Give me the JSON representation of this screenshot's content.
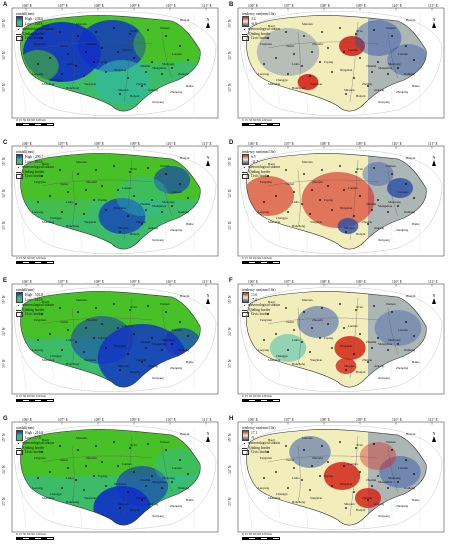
{
  "x_ticks": [
    "106° E",
    "107° E",
    "108° E",
    "109° E",
    "110° E",
    "111° E"
  ],
  "y_ticks": [
    "35° N",
    "34° N",
    "33° N"
  ],
  "legend_labels": {
    "rainfall": "rainfall(mm)",
    "tendency": "tendency rate(mm/10a)",
    "high": "High",
    "low": "Low",
    "station": "meteorological station",
    "border": "Qinling border",
    "civic": "Civic border"
  },
  "scale_label": "0 15 30     60     90    120",
  "scale_unit": "km",
  "north_label": "N",
  "places": [
    "Baoji",
    "Meixian",
    "Xi'an",
    "Weinan",
    "Huayin",
    "Luonan",
    "Shangzhou",
    "Zhen'an",
    "Hanzhong",
    "Foping",
    "Ningshan",
    "Ankang",
    "Lueyang",
    "Fengxian",
    "Zhashui",
    "Shanyang",
    "Chenggu",
    "Danfeng",
    "Lantian",
    "Zhouzhi",
    "Taibai",
    "Liuba",
    "Mianxian",
    "Yangxian",
    "Shiquan",
    "Hanyin",
    "Zhenping",
    "Xunyang",
    "Baihe"
  ],
  "panels": [
    {
      "id": "A",
      "type": "rainfall",
      "v1": "High : 238.6",
      "v2": "Low : 130.8"
    },
    {
      "id": "B",
      "type": "tendency",
      "v1": "3.4",
      "v2": "-6.9"
    },
    {
      "id": "C",
      "type": "rainfall",
      "v1": "High : 299.7",
      "v2": "Low : 195.6"
    },
    {
      "id": "D",
      "type": "tendency",
      "v1": "6.5",
      "v2": "-11.7"
    },
    {
      "id": "E",
      "type": "rainfall",
      "v1": "High : 501.8",
      "v2": "Low : 143.9"
    },
    {
      "id": "F",
      "type": "tendency",
      "v1": "13.6",
      "v2": "-7.4"
    },
    {
      "id": "G",
      "type": "rainfall",
      "v1": "High : 216.8",
      "v2": "Low : 77.5"
    },
    {
      "id": "H",
      "type": "tendency",
      "v1": "17.1",
      "v2": "-9"
    }
  ],
  "colors": {
    "rain_high": "#1030c8",
    "rain_mid": "#30b8a8",
    "rain_low": "#48c028",
    "tend_neg": "#2a4ea8",
    "tend_mid": "#f2eebc",
    "tend_pos": "#d42418",
    "basemap": "#d8d8d8"
  }
}
